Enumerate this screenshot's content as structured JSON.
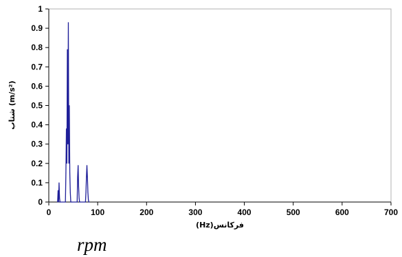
{
  "chart_data": {
    "type": "line",
    "title": "",
    "xlabel": "فرکانس(Hz)",
    "ylabel": "شتاب (m/s²)",
    "xlim": [
      0,
      700
    ],
    "ylim": [
      0,
      1
    ],
    "grid": false,
    "x_ticks": [
      "0",
      "100",
      "200",
      "300",
      "400",
      "500",
      "600",
      "700"
    ],
    "y_ticks": [
      "0",
      "0.1",
      "0.2",
      "0.3",
      "0.4",
      "0.5",
      "0.6",
      "0.7",
      "0.8",
      "0.9",
      "1"
    ],
    "series": [
      {
        "color": "#1f1f99",
        "x": [
          18,
          19,
          20,
          21,
          22,
          23,
          24,
          34,
          35,
          36,
          37,
          38,
          39,
          40,
          41,
          42,
          43,
          44,
          45,
          46,
          47,
          48,
          58,
          59,
          60,
          61,
          62,
          63,
          64,
          75,
          76,
          77,
          78,
          79,
          80,
          81,
          82,
          83
        ],
        "y": [
          0,
          0.06,
          0,
          0.1,
          0.02,
          0,
          0,
          0,
          0.15,
          0.38,
          0.2,
          0.79,
          0.3,
          0.93,
          0.2,
          0.5,
          0.15,
          0.05,
          0,
          0,
          0,
          0,
          0,
          0.13,
          0.19,
          0.08,
          0.02,
          0,
          0,
          0,
          0.05,
          0.13,
          0.19,
          0.13,
          0.05,
          0.01,
          0,
          0
        ]
      }
    ]
  },
  "caption": "rpm"
}
